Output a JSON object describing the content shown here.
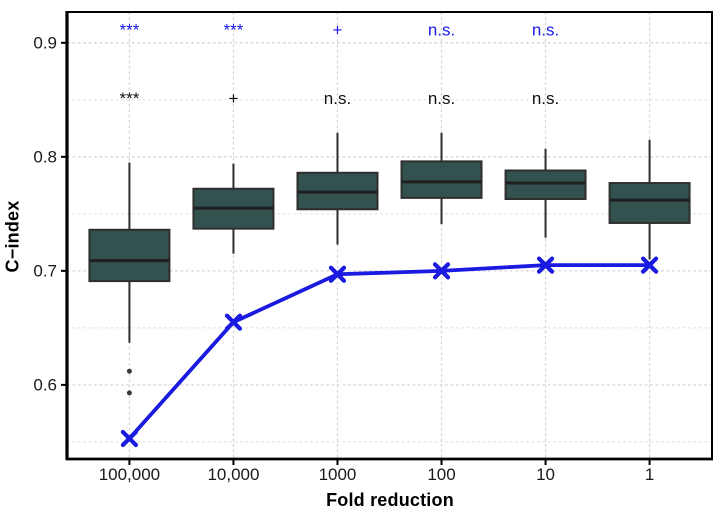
{
  "chart_data": {
    "type": "boxplot",
    "title": "",
    "xlabel": "Fold reduction",
    "ylabel": "C−index",
    "categories": [
      "100,000",
      "10,000",
      "1000",
      "100",
      "10",
      "1"
    ],
    "y_ticks": [
      "0.6",
      "0.7",
      "0.8",
      "0.9"
    ],
    "y_tick_values": [
      0.6,
      0.7,
      0.8,
      0.9
    ],
    "y_minor_values": [
      0.55,
      0.65,
      0.75,
      0.85
    ],
    "ylim": [
      0.535,
      0.927
    ],
    "grid": "dashed",
    "legend": "none",
    "boxes": [
      {
        "category": "100,000",
        "whisker_low": 0.637,
        "q1": 0.691,
        "median": 0.709,
        "q3": 0.736,
        "whisker_high": 0.795,
        "outliers": [
          0.612,
          0.593
        ]
      },
      {
        "category": "10,000",
        "whisker_low": 0.715,
        "q1": 0.737,
        "median": 0.755,
        "q3": 0.772,
        "whisker_high": 0.794,
        "outliers": []
      },
      {
        "category": "1000",
        "whisker_low": 0.723,
        "q1": 0.754,
        "median": 0.769,
        "q3": 0.786,
        "whisker_high": 0.821,
        "outliers": []
      },
      {
        "category": "100",
        "whisker_low": 0.741,
        "q1": 0.764,
        "median": 0.778,
        "q3": 0.796,
        "whisker_high": 0.821,
        "outliers": []
      },
      {
        "category": "10",
        "whisker_low": 0.729,
        "q1": 0.763,
        "median": 0.777,
        "q3": 0.788,
        "whisker_high": 0.807,
        "outliers": []
      },
      {
        "category": "1",
        "whisker_low": 0.71,
        "q1": 0.742,
        "median": 0.762,
        "q3": 0.777,
        "whisker_high": 0.815,
        "outliers": []
      }
    ],
    "line_series": {
      "marker": "x",
      "values": [
        0.553,
        0.655,
        0.697,
        0.7,
        0.705,
        0.705
      ],
      "color": "#1a1ae0"
    },
    "annotations": [
      {
        "row": "blue-significance-row",
        "y": 0.911,
        "color": "#1a1ae8",
        "labels": [
          "***",
          "***",
          "+",
          "n.s.",
          "n.s.",
          ""
        ]
      },
      {
        "row": "black-significance-row",
        "y": 0.851,
        "color": "#111111",
        "labels": [
          "***",
          "+",
          "n.s.",
          "n.s.",
          "n.s.",
          ""
        ]
      }
    ],
    "colors": {
      "box_fill": "#33524f",
      "box_border": "#2e2e2e",
      "median_line": "#1f1f1f",
      "whisker": "#2e2e2e",
      "outlier": "#3a3a3a",
      "grid_major": "#d6d6d6",
      "grid_minor": "#e4e4e4",
      "axis_text": "#1a1a1a",
      "panel_border": "#000000",
      "background": "#ffffff"
    }
  }
}
